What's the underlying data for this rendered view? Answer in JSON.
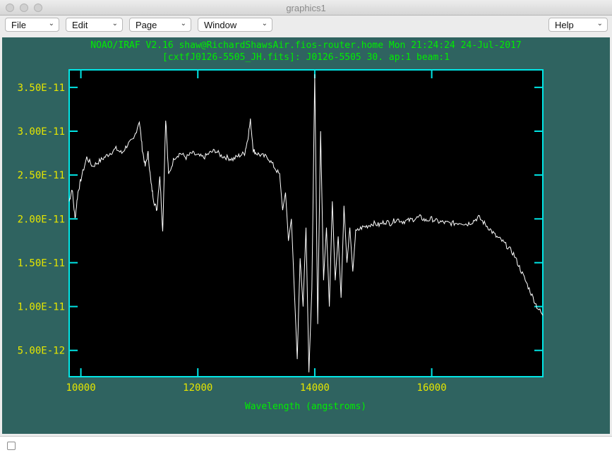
{
  "window": {
    "title": "graphics1"
  },
  "menubar": {
    "file_label": "File",
    "edit_label": "Edit",
    "page_label": "Page",
    "window_label": "Window",
    "help_label": "Help"
  },
  "header": {
    "line1": "NOAO/IRAF V2.16 shaw@RichardShawsAir.fios-router.home Mon 21:24:24 24-Jul-2017",
    "line2": "[cxtfJ0126-5505_JH.fits]: J0126-5505 30. ap:1 beam:1"
  },
  "colors": {
    "background": "#2f6360",
    "axes": "#00e6e6",
    "ticklabels": "#e6e600",
    "header": "#00ee00",
    "trace": "#ffffff"
  },
  "chart_data": {
    "type": "line",
    "title": "NOAO/IRAF V2.16 shaw@RichardShawsAir.fios-router.home Mon 21:24:24 24-Jul-2017",
    "xlabel": "Wavelength (angstroms)",
    "ylabel": "",
    "xlim": [
      9800,
      17900
    ],
    "ylim": [
      2e-12,
      3.7e-11
    ],
    "x_ticks": [
      10000,
      12000,
      14000,
      16000
    ],
    "x_tick_labels": [
      "10000",
      "12000",
      "14000",
      "16000"
    ],
    "y_ticks": [
      5e-12,
      1e-11,
      1.5e-11,
      2e-11,
      2.5e-11,
      3e-11,
      3.5e-11
    ],
    "y_tick_labels": [
      "5.00E-12",
      "1.00E-11",
      "1.50E-11",
      "2.00E-11",
      "2.50E-11",
      "3.00E-11",
      "3.50E-11"
    ],
    "series": [
      {
        "name": "J0126-5505",
        "x": [
          9800,
          9850,
          9900,
          9950,
          10000,
          10100,
          10200,
          10300,
          10400,
          10500,
          10600,
          10700,
          10800,
          10900,
          11000,
          11050,
          11100,
          11150,
          11200,
          11250,
          11300,
          11350,
          11400,
          11450,
          11500,
          11600,
          11700,
          11800,
          11900,
          12000,
          12100,
          12200,
          12300,
          12400,
          12500,
          12600,
          12700,
          12800,
          12850,
          12900,
          12950,
          13000,
          13100,
          13200,
          13300,
          13400,
          13450,
          13500,
          13550,
          13600,
          13650,
          13700,
          13750,
          13800,
          13850,
          13900,
          13950,
          14000,
          14050,
          14100,
          14150,
          14200,
          14250,
          14300,
          14350,
          14400,
          14450,
          14500,
          14550,
          14600,
          14650,
          14700,
          14800,
          14900,
          15000,
          15100,
          15200,
          15300,
          15400,
          15500,
          15600,
          15700,
          15800,
          15900,
          16000,
          16100,
          16200,
          16300,
          16400,
          16500,
          16600,
          16700,
          16800,
          16900,
          17000,
          17100,
          17200,
          17300,
          17400,
          17500,
          17600,
          17700,
          17800,
          17900
        ],
        "values": [
          2.2e-11,
          2.35e-11,
          2e-11,
          2.3e-11,
          2.45e-11,
          2.7e-11,
          2.6e-11,
          2.65e-11,
          2.7e-11,
          2.75e-11,
          2.8e-11,
          2.75e-11,
          2.85e-11,
          2.9e-11,
          3.12e-11,
          2.8e-11,
          2.6e-11,
          2.75e-11,
          2.4e-11,
          2.2e-11,
          2.1e-11,
          2.5e-11,
          1.85e-11,
          3.15e-11,
          2.5e-11,
          2.7e-11,
          2.75e-11,
          2.7e-11,
          2.75e-11,
          2.72e-11,
          2.7e-11,
          2.75e-11,
          2.78e-11,
          2.72e-11,
          2.7e-11,
          2.68e-11,
          2.72e-11,
          2.75e-11,
          2.9e-11,
          3.12e-11,
          2.78e-11,
          2.75e-11,
          2.72e-11,
          2.7e-11,
          2.6e-11,
          2.5e-11,
          2.1e-11,
          2.3e-11,
          1.75e-11,
          2e-11,
          1.2e-11,
          4e-12,
          1.55e-11,
          1e-11,
          1.9e-11,
          2.5e-12,
          1.2e-11,
          3.65e-11,
          8e-12,
          3e-11,
          1.3e-11,
          1.9e-11,
          1e-11,
          2.2e-11,
          1.3e-11,
          1.8e-11,
          1.1e-11,
          2.15e-11,
          1.5e-11,
          1.9e-11,
          1.4e-11,
          1.85e-11,
          1.9e-11,
          1.92e-11,
          1.95e-11,
          1.93e-11,
          1.97e-11,
          1.95e-11,
          2e-11,
          1.97e-11,
          1.98e-11,
          2e-11,
          2.02e-11,
          1.98e-11,
          2e-11,
          1.97e-11,
          1.96e-11,
          1.95e-11,
          1.95e-11,
          1.96e-11,
          1.94e-11,
          1.97e-11,
          2.02e-11,
          1.95e-11,
          1.88e-11,
          1.8e-11,
          1.75e-11,
          1.68e-11,
          1.6e-11,
          1.45e-11,
          1.3e-11,
          1.15e-11,
          1e-11,
          9e-12
        ]
      }
    ]
  }
}
